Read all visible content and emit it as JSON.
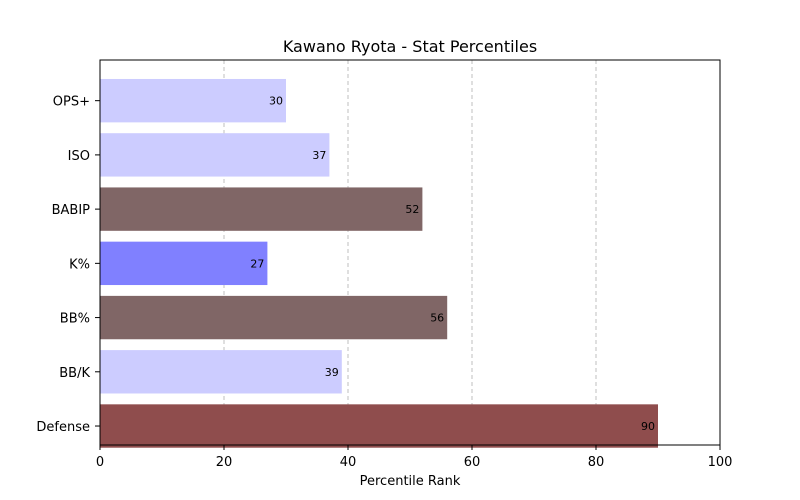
{
  "chart_data": {
    "type": "bar",
    "orientation": "horizontal",
    "title": "Kawano Ryota - Stat Percentiles",
    "xlabel": "Percentile Rank",
    "ylabel": "",
    "xlim": [
      0,
      100
    ],
    "xticks": [
      0,
      20,
      40,
      60,
      80,
      100
    ],
    "grid": "vertical dashed",
    "categories": [
      "OPS+",
      "ISO",
      "BABIP",
      "K%",
      "BB%",
      "BB/K",
      "Defense"
    ],
    "values": [
      30,
      37,
      52,
      27,
      56,
      39,
      90
    ],
    "colors": [
      "#ccccff",
      "#ccccff",
      "#806666",
      "#8080ff",
      "#806666",
      "#ccccff",
      "#8f4d4d"
    ]
  }
}
